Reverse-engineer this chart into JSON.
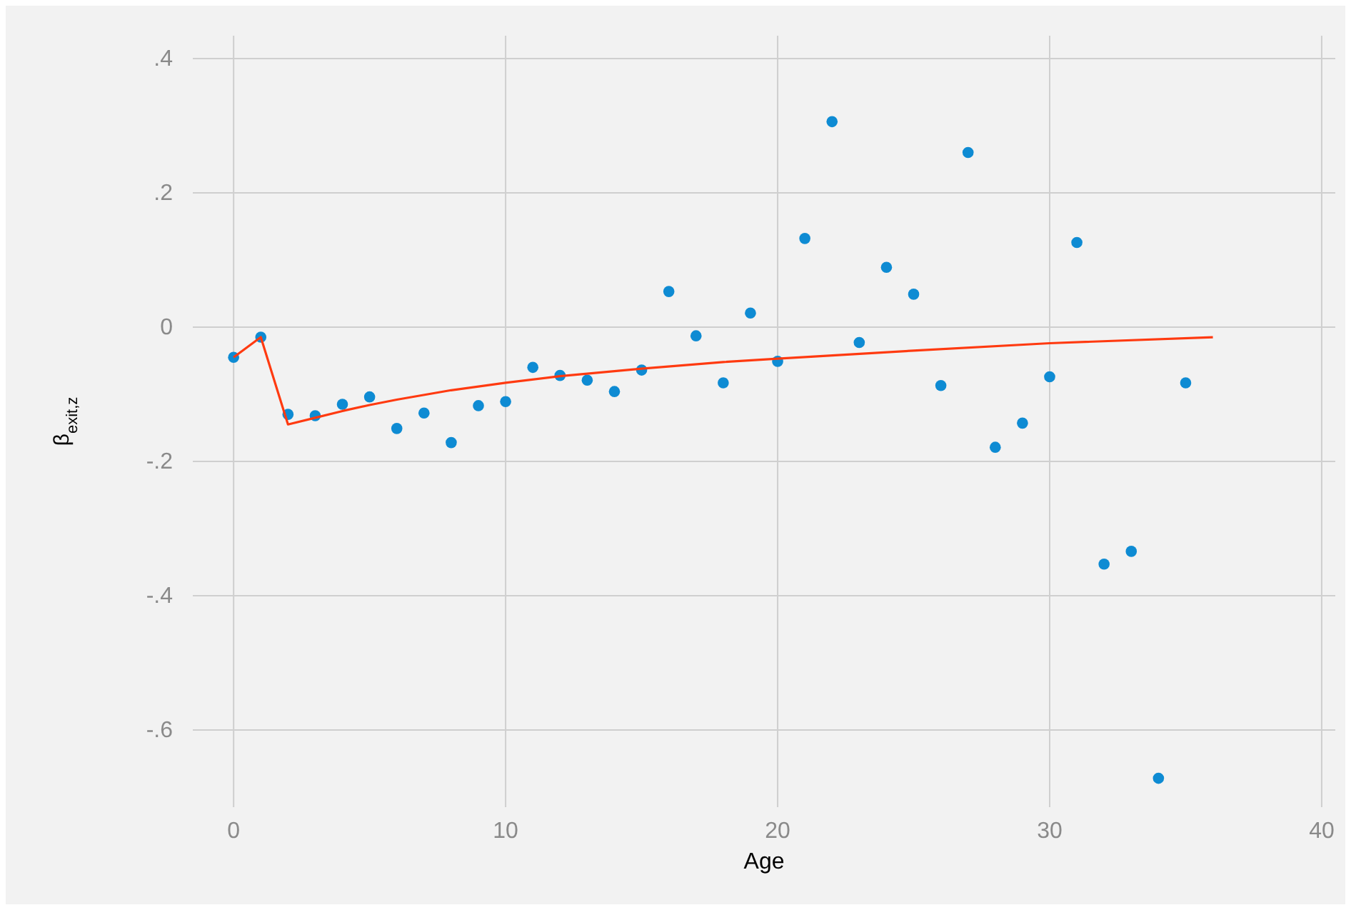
{
  "chart_data": {
    "type": "scatter",
    "xlabel": "Age",
    "ylabel": "β$_{exit,z}$",
    "xlim": [
      -1.5,
      40.5
    ],
    "ylim": [
      -0.715,
      0.434
    ],
    "xticks": [
      0,
      10,
      20,
      30,
      40
    ],
    "yticks": [
      {
        "value": -0.6,
        "label": "-.6"
      },
      {
        "value": -0.4,
        "label": "-.4"
      },
      {
        "value": -0.2,
        "label": "-.2"
      },
      {
        "value": 0,
        "label": "0"
      },
      {
        "value": 0.2,
        "label": ".2"
      },
      {
        "value": 0.4,
        "label": ".4"
      }
    ],
    "grid": true,
    "series": [
      {
        "marker": "circle",
        "color": "#0e8bd3",
        "x": [
          0,
          1,
          2,
          3,
          4,
          5,
          6,
          7,
          8,
          9,
          10,
          11,
          12,
          13,
          14,
          15,
          16,
          17,
          18,
          19,
          20,
          21,
          22,
          23,
          24,
          25,
          26,
          27,
          28,
          29,
          30,
          31,
          32,
          33,
          34,
          35
        ],
        "values": [
          -0.045,
          -0.015,
          -0.13,
          -0.132,
          -0.115,
          -0.104,
          -0.151,
          -0.128,
          -0.172,
          -0.117,
          -0.111,
          -0.06,
          -0.072,
          -0.079,
          -0.096,
          -0.064,
          0.053,
          -0.013,
          -0.083,
          0.021,
          -0.051,
          0.132,
          0.306,
          -0.023,
          0.089,
          0.049,
          -0.087,
          0.26,
          -0.179,
          -0.143,
          -0.074,
          0.126,
          -0.353,
          -0.334,
          -0.672,
          -0.083
        ]
      },
      {
        "type": "line",
        "marker": "none",
        "line_style": "solid",
        "color": "#ff3a10",
        "x": [
          0,
          1,
          2,
          3,
          4,
          5,
          6,
          8,
          10,
          12,
          15,
          18,
          20,
          25,
          30,
          36
        ],
        "values": [
          -0.045,
          -0.015,
          -0.145,
          -0.135,
          -0.125,
          -0.116,
          -0.108,
          -0.094,
          -0.083,
          -0.073,
          -0.062,
          -0.052,
          -0.047,
          -0.035,
          -0.024,
          -0.015
        ]
      }
    ]
  }
}
